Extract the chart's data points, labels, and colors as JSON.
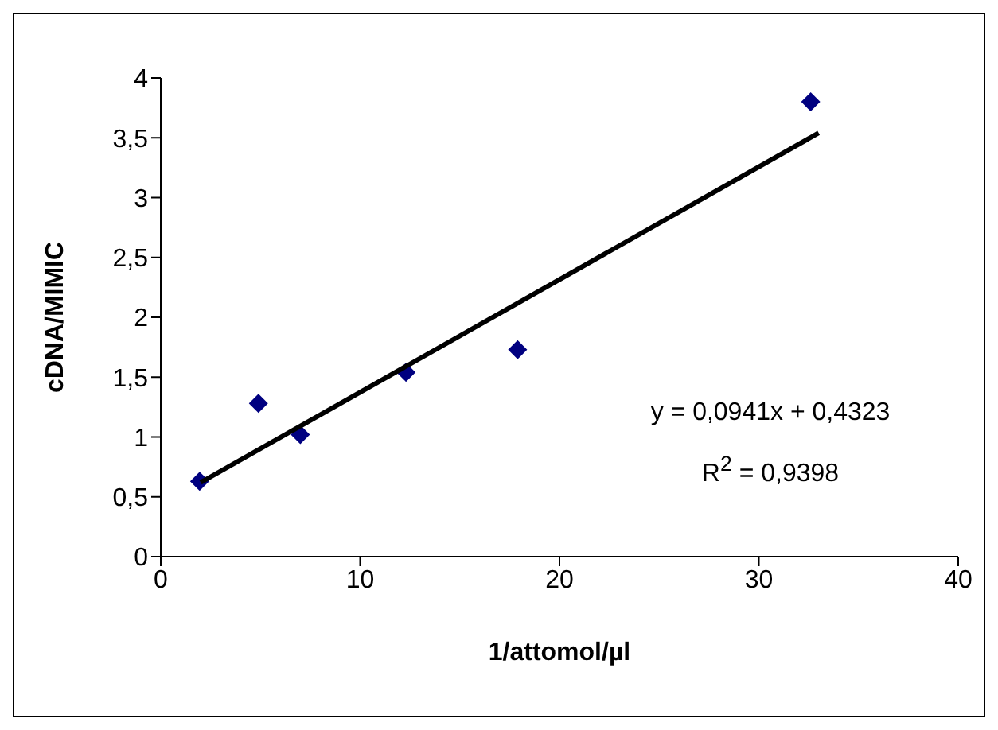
{
  "chart_data": {
    "type": "scatter",
    "xlabel": "1/attomol/µl",
    "ylabel": "cDNA/MIMIC",
    "series": [
      {
        "color": "#000080",
        "x": [
          1.95,
          4.9,
          7.0,
          12.3,
          17.9,
          32.6
        ],
        "values": [
          0.63,
          1.28,
          1.02,
          1.54,
          1.73,
          3.8
        ],
        "marker": "diamond"
      },
      {
        "type": "line",
        "color": "#000000",
        "x": [
          2,
          33
        ],
        "values": [
          0.62,
          3.54
        ],
        "marker": "none"
      }
    ],
    "xlim": [
      0,
      40
    ],
    "xticks": [
      0,
      10,
      20,
      30,
      40
    ],
    "ylim": [
      0,
      4
    ],
    "yticks": [
      0,
      {
        "value": 0.5,
        "label": "0,5"
      },
      1,
      {
        "value": 1.5,
        "label": "1,5"
      },
      2,
      {
        "value": 2.5,
        "label": "2,5"
      },
      3,
      {
        "value": 3.5,
        "label": "3,5"
      },
      4
    ],
    "grid": false,
    "annotations": [
      "y = 0,0941x + 0,4323",
      "R$^{2}$ = 0,9398"
    ]
  }
}
